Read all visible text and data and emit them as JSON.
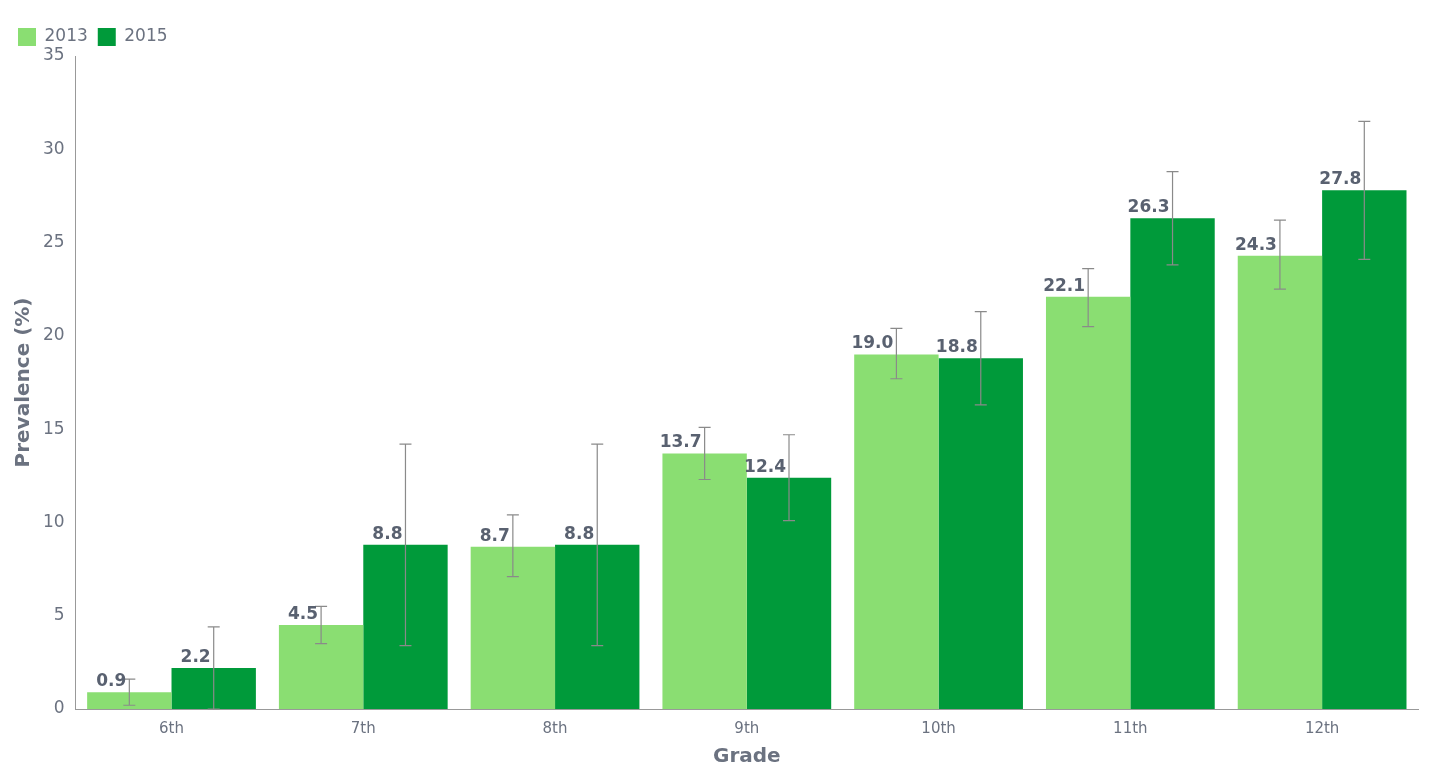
{
  "chart_data": {
    "type": "bar",
    "xlabel": "Grade",
    "ylabel": "Prevalence (%)",
    "categories": [
      "6th",
      "7th",
      "8th",
      "9th",
      "10th",
      "11th",
      "12th"
    ],
    "series": [
      {
        "name": "2013",
        "color": "#8ade72",
        "values": [
          0.9,
          4.5,
          8.7,
          13.7,
          19.0,
          22.1,
          24.3
        ],
        "value_labels": [
          "0.9",
          "4.5",
          "8.7",
          "13.7",
          "19.0",
          "22.1",
          "24.3"
        ],
        "errors": [
          [
            0.2,
            1.6
          ],
          [
            3.5,
            5.5
          ],
          [
            7.1,
            10.4
          ],
          [
            12.3,
            15.1
          ],
          [
            17.7,
            20.4
          ],
          [
            20.5,
            23.6
          ],
          [
            22.5,
            26.2
          ]
        ]
      },
      {
        "name": "2015",
        "color": "#009a3a",
        "values": [
          2.2,
          8.8,
          8.8,
          12.4,
          18.8,
          26.3,
          27.8
        ],
        "value_labels": [
          "2.2",
          "8.8",
          "8.8",
          "12.4",
          "18.8",
          "26.3",
          "27.8"
        ],
        "errors": [
          [
            0.0,
            4.4
          ],
          [
            3.4,
            14.2
          ],
          [
            3.4,
            14.2
          ],
          [
            10.1,
            14.7
          ],
          [
            16.3,
            21.3
          ],
          [
            23.8,
            28.8
          ],
          [
            24.1,
            31.5
          ]
        ]
      }
    ],
    "ylim": [
      0,
      35
    ],
    "yticks": [
      0,
      5,
      10,
      15,
      20,
      25,
      30,
      35
    ],
    "grid": false,
    "legend": "top left"
  }
}
